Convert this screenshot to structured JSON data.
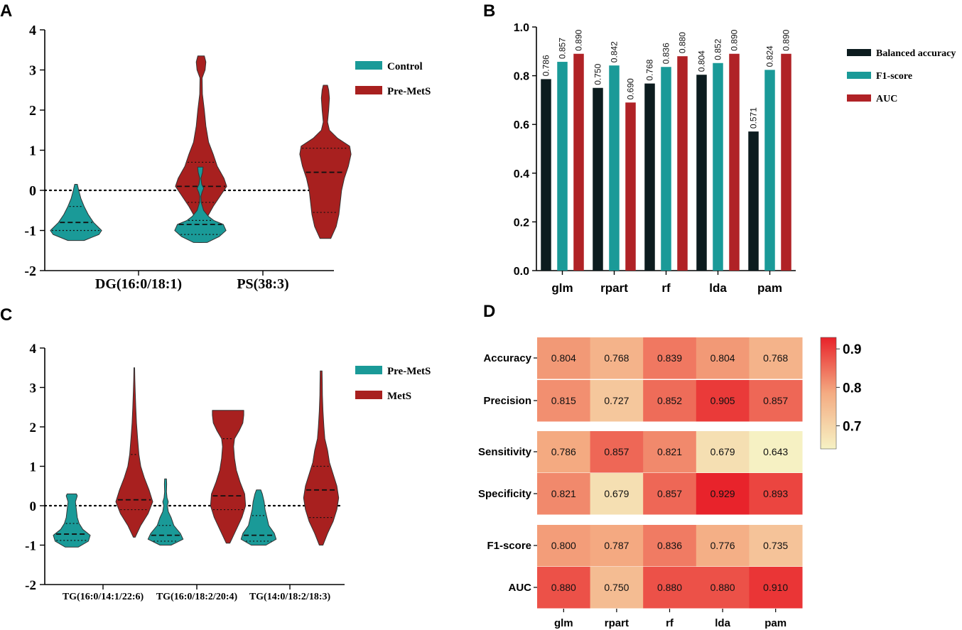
{
  "panel_labels": [
    "A",
    "B",
    "C",
    "D"
  ],
  "chart_data": [
    {
      "panel": "A",
      "type": "violin",
      "categories": [
        "DG(16:0/18:1)",
        "PS(38:3)"
      ],
      "ylim": [
        -2,
        4
      ],
      "yticks": [
        "4",
        "3",
        "2",
        "1",
        "0",
        "-1",
        "-2"
      ],
      "reference_line": 0,
      "legend": [
        {
          "label": "Control",
          "color": "#1a9a98"
        },
        {
          "label": "Pre-MetS",
          "color": "#a8201f"
        }
      ],
      "violins": [
        {
          "category": "DG(16:0/18:1)",
          "group": "Control",
          "min": -1.25,
          "max": 0.15,
          "median": -0.8,
          "q1": -1.0,
          "q3": -0.4,
          "shape": [
            [
              -1.25,
              0.3
            ],
            [
              -1.1,
              0.85
            ],
            [
              -1.0,
              0.95
            ],
            [
              -0.9,
              0.8
            ],
            [
              -0.8,
              0.65
            ],
            [
              -0.6,
              0.45
            ],
            [
              -0.4,
              0.3
            ],
            [
              -0.2,
              0.18
            ],
            [
              0.0,
              0.1
            ],
            [
              0.15,
              0.05
            ]
          ]
        },
        {
          "category": "DG(16:0/18:1)",
          "group": "Pre-MetS",
          "min": -1.0,
          "max": 3.35,
          "median": 0.1,
          "q1": -0.3,
          "q3": 0.7,
          "shape": [
            [
              -1.0,
              0.05
            ],
            [
              -0.7,
              0.2
            ],
            [
              -0.4,
              0.45
            ],
            [
              -0.1,
              0.75
            ],
            [
              0.1,
              0.95
            ],
            [
              0.3,
              0.85
            ],
            [
              0.6,
              0.6
            ],
            [
              0.9,
              0.45
            ],
            [
              1.2,
              0.28
            ],
            [
              1.6,
              0.18
            ],
            [
              2.0,
              0.12
            ],
            [
              2.4,
              0.05
            ],
            [
              2.8,
              0.04
            ],
            [
              3.0,
              0.15
            ],
            [
              3.2,
              0.18
            ],
            [
              3.35,
              0.12
            ]
          ]
        },
        {
          "category": "PS(38:3)",
          "group": "Control",
          "min": -1.3,
          "max": 0.58,
          "median": -0.85,
          "q1": -1.1,
          "q3": -0.75,
          "shape": [
            [
              -1.3,
              0.25
            ],
            [
              -1.15,
              0.7
            ],
            [
              -1.0,
              0.95
            ],
            [
              -0.85,
              0.85
            ],
            [
              -0.75,
              0.5
            ],
            [
              -0.65,
              0.3
            ],
            [
              -0.5,
              0.12
            ],
            [
              -0.3,
              0.03
            ],
            [
              -0.15,
              0.02
            ],
            [
              -0.05,
              0.06
            ],
            [
              0.05,
              0.12
            ],
            [
              0.15,
              0.05
            ],
            [
              0.3,
              0.02
            ],
            [
              0.45,
              0.08
            ],
            [
              0.58,
              0.1
            ]
          ]
        },
        {
          "category": "PS(38:3)",
          "group": "Pre-MetS",
          "min": -1.2,
          "max": 2.62,
          "median": 0.45,
          "q1": -0.55,
          "q3": 1.05,
          "shape": [
            [
              -1.2,
              0.2
            ],
            [
              -0.9,
              0.4
            ],
            [
              -0.6,
              0.5
            ],
            [
              -0.3,
              0.55
            ],
            [
              0.0,
              0.6
            ],
            [
              0.3,
              0.7
            ],
            [
              0.6,
              0.85
            ],
            [
              0.9,
              0.95
            ],
            [
              1.1,
              0.9
            ],
            [
              1.3,
              0.45
            ],
            [
              1.5,
              0.15
            ],
            [
              1.7,
              0.08
            ],
            [
              2.0,
              0.12
            ],
            [
              2.3,
              0.15
            ],
            [
              2.5,
              0.12
            ],
            [
              2.62,
              0.08
            ]
          ]
        }
      ]
    },
    {
      "panel": "B",
      "type": "bar",
      "categories": [
        "glm",
        "rpart",
        "rf",
        "lda",
        "pam"
      ],
      "ylim": [
        0.0,
        1.0
      ],
      "yticks": [
        "0.0",
        "0.2",
        "0.4",
        "0.6",
        "0.8",
        "1.0"
      ],
      "series": [
        {
          "name": "Balanced accuracy",
          "color": "#0c1c1f",
          "values": [
            0.786,
            0.75,
            0.768,
            0.804,
            0.571
          ],
          "labels": [
            "0.786",
            "0.750",
            "0.768",
            "0.804",
            "0.571"
          ]
        },
        {
          "name": "F1-score",
          "color": "#1a9a98",
          "values": [
            0.857,
            0.842,
            0.836,
            0.852,
            0.824
          ],
          "labels": [
            "0.857",
            "0.842",
            "0.836",
            "0.852",
            "0.824"
          ]
        },
        {
          "name": "AUC",
          "color": "#b02226",
          "values": [
            0.89,
            0.69,
            0.88,
            0.89,
            0.89
          ],
          "labels": [
            "0.890",
            "0.690",
            "0.880",
            "0.890",
            "0.890"
          ]
        }
      ]
    },
    {
      "panel": "C",
      "type": "violin",
      "categories": [
        "TG(16:0/14:1/22:6)",
        "TG(16:0/18:2/20:4)",
        "TG(14:0/18:2/18:3)"
      ],
      "ylim": [
        -2,
        4
      ],
      "yticks": [
        "4",
        "3",
        "2",
        "1",
        "0",
        "-1",
        "-2"
      ],
      "reference_line": 0,
      "legend": [
        {
          "label": "Pre-MetS",
          "color": "#1a9a98"
        },
        {
          "label": "MetS",
          "color": "#a8201f"
        }
      ],
      "violins": [
        {
          "category": "TG(16:0/14:1/22:6)",
          "group": "Pre-MetS",
          "min": -1.05,
          "max": 0.3,
          "median": -0.72,
          "q1": -0.88,
          "q3": -0.45,
          "shape": [
            [
              -1.05,
              0.35
            ],
            [
              -0.9,
              0.9
            ],
            [
              -0.75,
              1.0
            ],
            [
              -0.6,
              0.6
            ],
            [
              -0.45,
              0.4
            ],
            [
              -0.3,
              0.3
            ],
            [
              -0.1,
              0.25
            ],
            [
              0.1,
              0.2
            ],
            [
              0.25,
              0.3
            ],
            [
              0.3,
              0.25
            ]
          ]
        },
        {
          "category": "TG(16:0/14:1/22:6)",
          "group": "MetS",
          "min": -0.8,
          "max": 3.5,
          "median": 0.15,
          "q1": -0.1,
          "q3": 1.3,
          "shape": [
            [
              -0.8,
              0.05
            ],
            [
              -0.5,
              0.35
            ],
            [
              -0.2,
              0.75
            ],
            [
              0.1,
              1.0
            ],
            [
              0.4,
              0.8
            ],
            [
              0.7,
              0.55
            ],
            [
              1.0,
              0.35
            ],
            [
              1.3,
              0.25
            ],
            [
              1.7,
              0.18
            ],
            [
              2.1,
              0.12
            ],
            [
              2.5,
              0.08
            ],
            [
              2.9,
              0.05
            ],
            [
              3.2,
              0.03
            ],
            [
              3.5,
              0.02
            ]
          ]
        },
        {
          "category": "TG(16:0/18:2/20:4)",
          "group": "Pre-MetS",
          "min": -1.0,
          "max": 0.68,
          "median": -0.75,
          "q1": -0.9,
          "q3": -0.5,
          "shape": [
            [
              -1.0,
              0.3
            ],
            [
              -0.85,
              0.95
            ],
            [
              -0.7,
              0.8
            ],
            [
              -0.5,
              0.45
            ],
            [
              -0.3,
              0.3
            ],
            [
              -0.15,
              0.15
            ],
            [
              0.0,
              0.1
            ],
            [
              0.1,
              0.15
            ],
            [
              0.2,
              0.08
            ],
            [
              0.35,
              0.05
            ],
            [
              0.55,
              0.06
            ],
            [
              0.68,
              0.05
            ]
          ]
        },
        {
          "category": "TG(16:0/18:2/20:4)",
          "group": "MetS",
          "min": -0.95,
          "max": 2.42,
          "median": 0.25,
          "q1": -0.1,
          "q3": 1.7,
          "shape": [
            [
              -0.95,
              0.1
            ],
            [
              -0.6,
              0.45
            ],
            [
              -0.3,
              0.75
            ],
            [
              0.0,
              0.95
            ],
            [
              0.3,
              0.9
            ],
            [
              0.6,
              0.65
            ],
            [
              0.9,
              0.45
            ],
            [
              1.2,
              0.35
            ],
            [
              1.5,
              0.3
            ],
            [
              1.7,
              0.35
            ],
            [
              1.9,
              0.6
            ],
            [
              2.1,
              0.8
            ],
            [
              2.3,
              0.85
            ],
            [
              2.42,
              0.85
            ]
          ]
        },
        {
          "category": "TG(14:0/18:2/18:3)",
          "group": "Pre-MetS",
          "min": -1.0,
          "max": 0.4,
          "median": -0.75,
          "q1": -0.9,
          "q3": -0.25,
          "shape": [
            [
              -1.0,
              0.4
            ],
            [
              -0.85,
              0.95
            ],
            [
              -0.7,
              0.85
            ],
            [
              -0.5,
              0.55
            ],
            [
              -0.3,
              0.45
            ],
            [
              -0.1,
              0.35
            ],
            [
              0.1,
              0.3
            ],
            [
              0.3,
              0.2
            ],
            [
              0.4,
              0.12
            ]
          ]
        },
        {
          "category": "TG(14:0/18:2/18:3)",
          "group": "MetS",
          "min": -1.0,
          "max": 3.42,
          "median": 0.4,
          "q1": -0.3,
          "q3": 1.0,
          "shape": [
            [
              -1.0,
              0.1
            ],
            [
              -0.7,
              0.35
            ],
            [
              -0.4,
              0.65
            ],
            [
              -0.1,
              0.85
            ],
            [
              0.2,
              0.95
            ],
            [
              0.5,
              0.85
            ],
            [
              0.8,
              0.65
            ],
            [
              1.1,
              0.45
            ],
            [
              1.4,
              0.35
            ],
            [
              1.7,
              0.2
            ],
            [
              2.0,
              0.15
            ],
            [
              2.4,
              0.1
            ],
            [
              2.8,
              0.07
            ],
            [
              3.1,
              0.06
            ],
            [
              3.42,
              0.05
            ]
          ]
        }
      ]
    },
    {
      "panel": "D",
      "type": "heatmap",
      "columns": [
        "glm",
        "rpart",
        "rf",
        "lda",
        "pam"
      ],
      "row_groups": [
        [
          "Accuracy",
          "Precision"
        ],
        [
          "Sensitivity",
          "Specificity"
        ],
        [
          "F1-score",
          "AUC"
        ]
      ],
      "rows": [
        "Accuracy",
        "Precision",
        "Sensitivity",
        "Specificity",
        "F1-score",
        "AUC"
      ],
      "values": [
        [
          0.804,
          0.768,
          0.839,
          0.804,
          0.768
        ],
        [
          0.815,
          0.727,
          0.852,
          0.905,
          0.857
        ],
        [
          0.786,
          0.857,
          0.821,
          0.679,
          0.643
        ],
        [
          0.821,
          0.679,
          0.857,
          0.929,
          0.893
        ],
        [
          0.8,
          0.787,
          0.836,
          0.776,
          0.735
        ],
        [
          0.88,
          0.75,
          0.88,
          0.88,
          0.91
        ]
      ],
      "labels": [
        [
          "0.804",
          "0.768",
          "0.839",
          "0.804",
          "0.768"
        ],
        [
          "0.815",
          "0.727",
          "0.852",
          "0.905",
          "0.857"
        ],
        [
          "0.786",
          "0.857",
          "0.821",
          "0.679",
          "0.643"
        ],
        [
          "0.821",
          "0.679",
          "0.857",
          "0.929",
          "0.893"
        ],
        [
          "0.800",
          "0.787",
          "0.836",
          "0.776",
          "0.735"
        ],
        [
          "0.880",
          "0.750",
          "0.880",
          "0.880",
          "0.910"
        ]
      ],
      "colorbar": {
        "range": [
          0.64,
          0.93
        ],
        "ticks": [
          {
            "value": 0.9,
            "label": "0.9"
          },
          {
            "value": 0.8,
            "label": "0.8"
          },
          {
            "value": 0.7,
            "label": "0.7"
          }
        ],
        "low_color": "#f6f2c4",
        "mid_color": "#f4ab82",
        "high_color": "#e8222a"
      }
    }
  ]
}
